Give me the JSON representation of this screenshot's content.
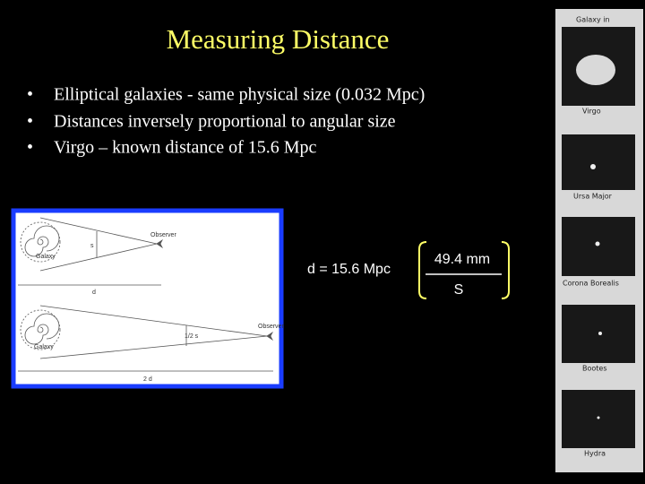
{
  "title": "Measuring Distance",
  "bullets": [
    "Elliptical galaxies - same physical size (0.032 Mpc)",
    "Distances inversely proportional to angular size",
    "Virgo – known distance of 15.6 Mpc"
  ],
  "diagram": {
    "top": {
      "galaxy": "Galaxy",
      "size": "s",
      "observer": "Observer",
      "distance": "d"
    },
    "bottom": {
      "galaxy": "Galaxy",
      "size": "1/2 s",
      "observer": "Observer",
      "distance": "2 d"
    }
  },
  "formula": {
    "lhs": "d = 15.6 Mpc",
    "numerator": "49.4 mm",
    "denominator": "S"
  },
  "photos": {
    "heading": "Galaxy in",
    "labels": [
      "Virgo",
      "Ursa Major",
      "Corona Borealis",
      "Bootes",
      "Hydra"
    ]
  }
}
